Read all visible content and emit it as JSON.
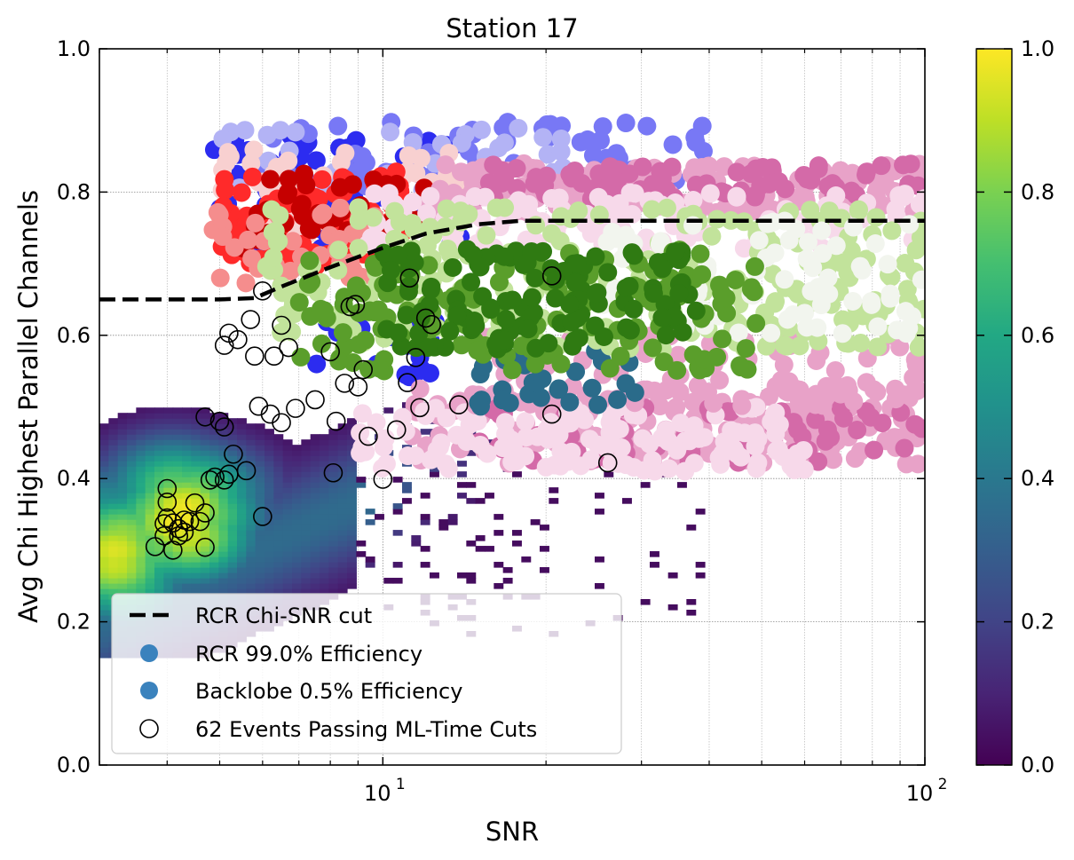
{
  "chart_data": {
    "type": "scatter",
    "title": "Station 17",
    "xlabel": "SNR",
    "ylabel": "Avg Chi Highest Parallel Channels",
    "xscale": "log",
    "xlim": [
      3,
      100
    ],
    "ylim": [
      0,
      1
    ],
    "x_ticks": [
      {
        "value": 10,
        "base": "10",
        "exp": "1"
      },
      {
        "value": 100,
        "base": "10",
        "exp": "2"
      }
    ],
    "y_ticks": [
      "0.0",
      "0.2",
      "0.4",
      "0.6",
      "0.8",
      "1.0"
    ],
    "grid": true,
    "legend_position": "lower-left",
    "legend": [
      {
        "label": "RCR Chi-SNR cut",
        "marker": "dashed-line",
        "color": "#000000"
      },
      {
        "label": "RCR 99.0% Efficiency",
        "marker": "filled-circle",
        "color": "#3a82bd"
      },
      {
        "label": "Backlobe 0.5% Efficiency",
        "marker": "filled-circle",
        "color": "#3a82bd"
      },
      {
        "label": "62 Events Passing ML-Time Cuts",
        "marker": "open-circle",
        "color": "#000000"
      }
    ],
    "colorbar": {
      "colormap": "viridis",
      "range": [
        0,
        1
      ],
      "ticks": [
        "0.0",
        "0.2",
        "0.4",
        "0.6",
        "0.8",
        "1.0"
      ]
    },
    "cut_line": {
      "name": "RCR Chi-SNR cut",
      "points": [
        [
          3,
          0.65
        ],
        [
          5,
          0.65
        ],
        [
          5.8,
          0.652
        ],
        [
          6.5,
          0.668
        ],
        [
          8,
          0.695
        ],
        [
          10,
          0.722
        ],
        [
          12,
          0.742
        ],
        [
          15,
          0.755
        ],
        [
          18,
          0.76
        ],
        [
          100,
          0.76
        ]
      ]
    },
    "scatter_clusters": [
      {
        "group": "RCR",
        "color": "#2c2cf0",
        "x_range": [
          4.8,
          14
        ],
        "y_range": [
          0.72,
          0.88
        ],
        "count": 90
      },
      {
        "group": "RCR",
        "color": "#7878f5",
        "x_range": [
          6,
          40
        ],
        "y_range": [
          0.8,
          0.9
        ],
        "count": 70
      },
      {
        "group": "RCR",
        "color": "#b3b3f5",
        "x_range": [
          5,
          25
        ],
        "y_range": [
          0.8,
          0.89
        ],
        "count": 40
      },
      {
        "group": "RCR",
        "color": "#f8d0d0",
        "x_range": [
          5,
          14
        ],
        "y_range": [
          0.74,
          0.86
        ],
        "count": 60
      },
      {
        "group": "RCR",
        "color": "#ff2a2a",
        "x_range": [
          5,
          11
        ],
        "y_range": [
          0.69,
          0.83
        ],
        "count": 90
      },
      {
        "group": "RCR",
        "color": "#c50000",
        "x_range": [
          5.5,
          12
        ],
        "y_range": [
          0.72,
          0.83
        ],
        "count": 40
      },
      {
        "group": "RCR",
        "color": "#f58d8d",
        "x_range": [
          4.8,
          10
        ],
        "y_range": [
          0.67,
          0.78
        ],
        "count": 40
      },
      {
        "group": "RCR",
        "color": "#2c2cf0",
        "x_range": [
          7,
          14
        ],
        "y_range": [
          0.54,
          0.62
        ],
        "count": 20
      },
      {
        "group": "Backlobe",
        "color": "#e8a2c8",
        "x_range": [
          12,
          100
        ],
        "y_range": [
          0.77,
          0.84
        ],
        "count": 200
      },
      {
        "group": "Backlobe",
        "color": "#d46aa8",
        "x_range": [
          15,
          100
        ],
        "y_range": [
          0.79,
          0.84
        ],
        "count": 80
      },
      {
        "group": "Backlobe",
        "color": "#f7d9ea",
        "x_range": [
          9,
          100
        ],
        "y_range": [
          0.72,
          0.8
        ],
        "count": 120
      },
      {
        "group": "Backlobe",
        "color": "#e8a2c8",
        "x_range": [
          11,
          100
        ],
        "y_range": [
          0.42,
          0.53
        ],
        "count": 220
      },
      {
        "group": "Backlobe",
        "color": "#d46aa8",
        "x_range": [
          15,
          100
        ],
        "y_range": [
          0.42,
          0.5
        ],
        "count": 70
      },
      {
        "group": "Backlobe",
        "color": "#f7d9ea",
        "x_range": [
          9,
          60
        ],
        "y_range": [
          0.41,
          0.5
        ],
        "count": 140
      },
      {
        "group": "Backlobe",
        "color": "#e8a2c8",
        "x_range": [
          14,
          100
        ],
        "y_range": [
          0.5,
          0.6
        ],
        "count": 80
      },
      {
        "group": "Backlobe",
        "color": "#2a6b8a",
        "x_range": [
          15,
          30
        ],
        "y_range": [
          0.5,
          0.58
        ],
        "count": 30
      },
      {
        "group": "Backlobe",
        "color": "#c2e39b",
        "x_range": [
          6,
          100
        ],
        "y_range": [
          0.58,
          0.78
        ],
        "count": 260
      },
      {
        "group": "Backlobe",
        "color": "#f2f5ee",
        "x_range": [
          25,
          100
        ],
        "y_range": [
          0.6,
          0.76
        ],
        "count": 80
      },
      {
        "group": "Backlobe",
        "color": "#5a9e2b",
        "x_range": [
          7,
          50
        ],
        "y_range": [
          0.55,
          0.72
        ],
        "count": 160
      },
      {
        "group": "Backlobe",
        "color": "#2f7a12",
        "x_range": [
          10,
          40
        ],
        "y_range": [
          0.58,
          0.72
        ],
        "count": 130
      }
    ],
    "passing_events": [
      [
        6.0,
        0.662
      ],
      [
        11.2,
        0.68
      ],
      [
        20.5,
        0.683
      ],
      [
        8.7,
        0.64
      ],
      [
        8.9,
        0.643
      ],
      [
        5.7,
        0.622
      ],
      [
        6.5,
        0.614
      ],
      [
        12,
        0.624
      ],
      [
        12.3,
        0.615
      ],
      [
        5.2,
        0.603
      ],
      [
        5.4,
        0.594
      ],
      [
        5.1,
        0.586
      ],
      [
        6.7,
        0.583
      ],
      [
        8.0,
        0.577
      ],
      [
        5.8,
        0.571
      ],
      [
        6.3,
        0.571
      ],
      [
        11.5,
        0.569
      ],
      [
        9.2,
        0.552
      ],
      [
        11.1,
        0.534
      ],
      [
        8.5,
        0.533
      ],
      [
        9.0,
        0.528
      ],
      [
        13.8,
        0.503
      ],
      [
        7.5,
        0.51
      ],
      [
        20.5,
        0.49
      ],
      [
        6.2,
        0.49
      ],
      [
        5.9,
        0.501
      ],
      [
        6.9,
        0.498
      ],
      [
        6.5,
        0.478
      ],
      [
        4.7,
        0.486
      ],
      [
        5.0,
        0.48
      ],
      [
        5.1,
        0.472
      ],
      [
        11.7,
        0.499
      ],
      [
        8.2,
        0.48
      ],
      [
        9.4,
        0.459
      ],
      [
        10.6,
        0.468
      ],
      [
        5.3,
        0.434
      ],
      [
        5.6,
        0.411
      ],
      [
        8.1,
        0.408
      ],
      [
        10,
        0.399
      ],
      [
        26,
        0.422
      ],
      [
        4.8,
        0.398
      ],
      [
        5.1,
        0.398
      ],
      [
        4.9,
        0.402
      ],
      [
        5.2,
        0.406
      ],
      [
        4.0,
        0.386
      ],
      [
        4.0,
        0.367
      ],
      [
        4.5,
        0.366
      ],
      [
        4.7,
        0.352
      ],
      [
        6.0,
        0.347
      ],
      [
        4.3,
        0.342
      ],
      [
        4.1,
        0.338
      ],
      [
        3.95,
        0.337
      ],
      [
        4.2,
        0.33
      ],
      [
        4.3,
        0.325
      ],
      [
        4.2,
        0.32
      ],
      [
        4.6,
        0.34
      ],
      [
        4.4,
        0.34
      ],
      [
        3.95,
        0.32
      ],
      [
        3.8,
        0.305
      ],
      [
        4.7,
        0.304
      ],
      [
        4.1,
        0.3
      ],
      [
        4.0,
        0.345
      ]
    ],
    "histogram2d": {
      "description_values": "normalized density, viridis colormap",
      "cells": [
        [
          3.2,
          0.3,
          0.95
        ],
        [
          3.2,
          0.28,
          0.92
        ],
        [
          3.3,
          0.32,
          0.85
        ],
        [
          3.2,
          0.33,
          0.7
        ],
        [
          3.3,
          0.26,
          0.75
        ],
        [
          3.5,
          0.3,
          0.7
        ],
        [
          3.1,
          0.36,
          0.5
        ],
        [
          3.1,
          0.24,
          0.45
        ],
        [
          4.3,
          0.36,
          0.98
        ],
        [
          4.2,
          0.34,
          1.0
        ],
        [
          4.4,
          0.32,
          0.92
        ],
        [
          4.0,
          0.35,
          0.85
        ],
        [
          4.5,
          0.38,
          0.8
        ],
        [
          3.9,
          0.31,
          0.78
        ],
        [
          4.6,
          0.35,
          0.82
        ],
        [
          4.1,
          0.39,
          0.75
        ],
        [
          3.7,
          0.34,
          0.62
        ],
        [
          3.8,
          0.38,
          0.58
        ],
        [
          4.8,
          0.38,
          0.6
        ],
        [
          4.9,
          0.33,
          0.5
        ]
      ],
      "x_range": [
        3,
        100
      ],
      "y_range": [
        0.15,
        0.67
      ]
    }
  }
}
